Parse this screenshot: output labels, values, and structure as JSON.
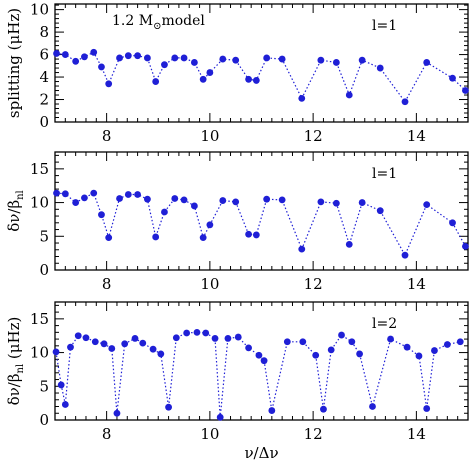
{
  "chart_data": [
    {
      "type": "scatter",
      "ylabel": "splitting (μHz)",
      "annotations": {
        "model": "1.2 M",
        "model_sub": "⊙",
        "model_tail": "model",
        "degree": "l=1"
      },
      "xlim": [
        7.0,
        15.0
      ],
      "ylim": [
        0,
        10.5
      ],
      "x_ticks": [
        8,
        10,
        12,
        14
      ],
      "y_ticks": [
        0,
        2,
        4,
        6,
        8,
        10
      ],
      "show_x_tick_labels": true,
      "color": "#1f1fd6",
      "series": [
        {
          "x": [
            7.03,
            7.2,
            7.4,
            7.57,
            7.75,
            7.9,
            8.04,
            8.25,
            8.42,
            8.6,
            8.79,
            8.95,
            9.12,
            9.32,
            9.5,
            9.7,
            9.87,
            10.0,
            10.25,
            10.5,
            10.75,
            10.9,
            11.1,
            11.4,
            11.78,
            12.15,
            12.45,
            12.7,
            12.95,
            13.3,
            13.78,
            14.2,
            14.7,
            14.95
          ],
          "y": [
            6.1,
            6.0,
            5.4,
            5.8,
            6.2,
            4.9,
            3.4,
            5.7,
            5.9,
            5.9,
            5.7,
            3.6,
            5.1,
            5.7,
            5.7,
            5.3,
            3.8,
            4.4,
            5.6,
            5.5,
            3.8,
            3.7,
            5.7,
            5.6,
            2.1,
            5.5,
            5.3,
            2.4,
            5.5,
            4.8,
            1.8,
            5.3,
            3.9,
            2.8
          ]
        }
      ]
    },
    {
      "type": "scatter",
      "ylabel": "δν/β",
      "ylabel_sub": "nl",
      "annotations": {
        "degree": "l=1"
      },
      "xlim": [
        7.0,
        15.0
      ],
      "ylim": [
        0,
        17.5
      ],
      "x_ticks": [
        8,
        10,
        12,
        14
      ],
      "y_ticks": [
        0,
        5,
        10,
        15
      ],
      "show_x_tick_labels": true,
      "color": "#1f1fd6",
      "series": [
        {
          "x": [
            7.03,
            7.2,
            7.4,
            7.57,
            7.75,
            7.9,
            8.04,
            8.25,
            8.42,
            8.6,
            8.79,
            8.95,
            9.12,
            9.32,
            9.5,
            9.7,
            9.87,
            10.0,
            10.25,
            10.5,
            10.75,
            10.9,
            11.1,
            11.4,
            11.78,
            12.15,
            12.45,
            12.7,
            12.95,
            13.3,
            13.78,
            14.2,
            14.7,
            14.95
          ],
          "y": [
            11.4,
            11.3,
            10.0,
            10.7,
            11.4,
            8.2,
            4.8,
            10.6,
            11.2,
            11.2,
            10.5,
            4.9,
            8.6,
            10.6,
            10.4,
            9.5,
            4.8,
            6.7,
            10.3,
            10.1,
            5.3,
            5.2,
            10.5,
            10.4,
            3.1,
            10.1,
            9.9,
            3.8,
            10.0,
            8.8,
            2.2,
            9.7,
            7.0,
            3.5
          ]
        }
      ]
    },
    {
      "type": "scatter",
      "ylabel": "δν/β",
      "ylabel_sub": "nl",
      "ylabel_unit": "(μHz)",
      "xlabel": "ν/Δν",
      "annotations": {
        "degree": "l=2"
      },
      "xlim": [
        7.0,
        15.0
      ],
      "ylim": [
        0,
        17.5
      ],
      "x_ticks": [
        8,
        10,
        12,
        14
      ],
      "y_ticks": [
        0,
        5,
        10,
        15
      ],
      "show_x_tick_labels": true,
      "color": "#1f1fd6",
      "series": [
        {
          "x": [
            7.02,
            7.12,
            7.2,
            7.3,
            7.45,
            7.6,
            7.78,
            7.95,
            8.1,
            8.2,
            8.35,
            8.55,
            8.7,
            8.9,
            9.05,
            9.2,
            9.35,
            9.55,
            9.75,
            9.92,
            10.1,
            10.2,
            10.35,
            10.55,
            10.75,
            10.95,
            11.05,
            11.2,
            11.5,
            11.8,
            12.05,
            12.2,
            12.35,
            12.55,
            12.75,
            12.9,
            13.15,
            13.5,
            13.82,
            14.05,
            14.2,
            14.35,
            14.6,
            14.85
          ],
          "y": [
            10.1,
            5.2,
            2.3,
            10.8,
            12.5,
            12.2,
            11.6,
            11.3,
            10.6,
            1.0,
            11.3,
            12.1,
            11.4,
            10.5,
            9.8,
            1.9,
            12.2,
            12.9,
            13.0,
            12.9,
            12.1,
            0.4,
            12.1,
            12.3,
            10.7,
            9.6,
            8.8,
            1.4,
            11.6,
            11.6,
            9.6,
            1.6,
            10.4,
            12.6,
            11.6,
            9.8,
            2.0,
            12.0,
            10.8,
            9.5,
            1.7,
            10.3,
            11.2,
            11.6
          ]
        }
      ]
    }
  ]
}
